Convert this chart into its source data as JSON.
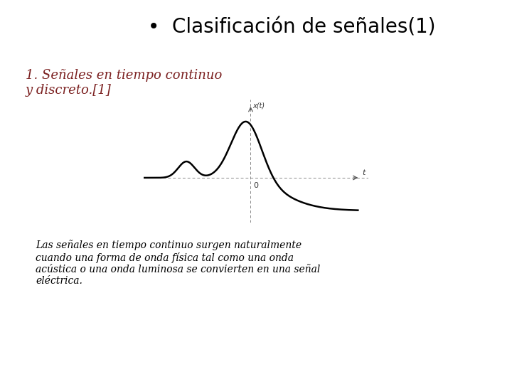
{
  "title": "•  Clasificación de señales(1)",
  "subtitle": "1. Señales en tiempo continuo\ny discreto.[1]",
  "subtitle_color": "#7B2020",
  "body_text": "Las señales en tiempo continuo surgen naturalmente\ncuando una forma de onda física tal como una onda\nacústica o una onda luminosa se convierten en una señal\neléctrica.",
  "xlabel": "t",
  "ylabel": "x(t)",
  "background_color": "#ffffff",
  "curve_color": "#000000",
  "axis_color": "#888888",
  "title_fontsize": 20,
  "subtitle_fontsize": 13,
  "body_fontsize": 10
}
